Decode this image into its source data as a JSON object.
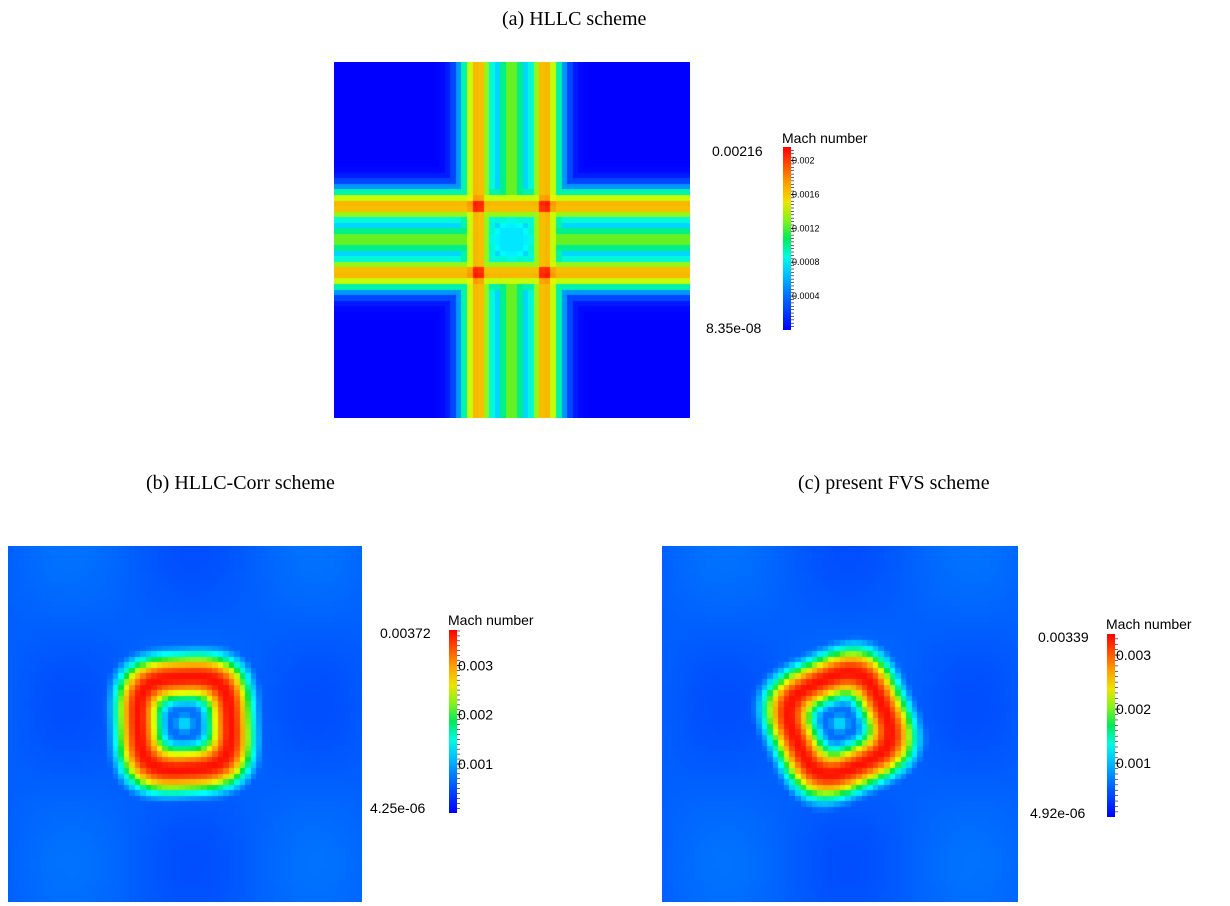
{
  "panels": [
    {
      "caption": "(a) HLLC scheme",
      "pattern": "cross",
      "colorbar": {
        "title": "Mach number",
        "max_label": "0.00216",
        "min_label": "8.35e-08",
        "range": [
          8.35e-08,
          0.00216
        ],
        "ticks": [
          0.002,
          0.0016,
          0.0012,
          0.0008,
          0.0004
        ],
        "tick_labels": [
          "0.002",
          "0.0016",
          "0.0012",
          "0.0008",
          "0.0004"
        ]
      }
    },
    {
      "caption": "(b) HLLC-Corr scheme",
      "pattern": "ring",
      "colorbar": {
        "title": "Mach number",
        "max_label": "0.00372",
        "min_label": "4.25e-06",
        "range": [
          4.25e-06,
          0.00372
        ],
        "ticks": [
          0.003,
          0.002,
          0.001
        ],
        "tick_labels": [
          "0.003",
          "0.002",
          "0.001"
        ]
      }
    },
    {
      "caption": "(c) present FVS scheme",
      "pattern": "ring",
      "colorbar": {
        "title": "Mach number",
        "max_label": "0.00339",
        "min_label": "4.92e-06",
        "range": [
          4.92e-06,
          0.00339
        ],
        "ticks": [
          0.003,
          0.002,
          0.001
        ],
        "tick_labels": [
          "0.003",
          "0.002",
          "0.001"
        ]
      }
    }
  ],
  "chart_data": [
    {
      "type": "heatmap",
      "title": "(a) HLLC scheme",
      "colorbar_label": "Mach number",
      "value_range": [
        8.35e-08,
        0.00216
      ],
      "colormap": "jet",
      "description_of_field": "cross"
    },
    {
      "type": "heatmap",
      "title": "(b) HLLC-Corr scheme",
      "colorbar_label": "Mach number",
      "value_range": [
        4.25e-06,
        0.00372
      ],
      "colormap": "jet"
    },
    {
      "type": "heatmap",
      "title": "(c) present FVS scheme",
      "colorbar_label": "Mach number",
      "value_range": [
        4.92e-06,
        0.00339
      ],
      "colormap": "jet"
    }
  ]
}
